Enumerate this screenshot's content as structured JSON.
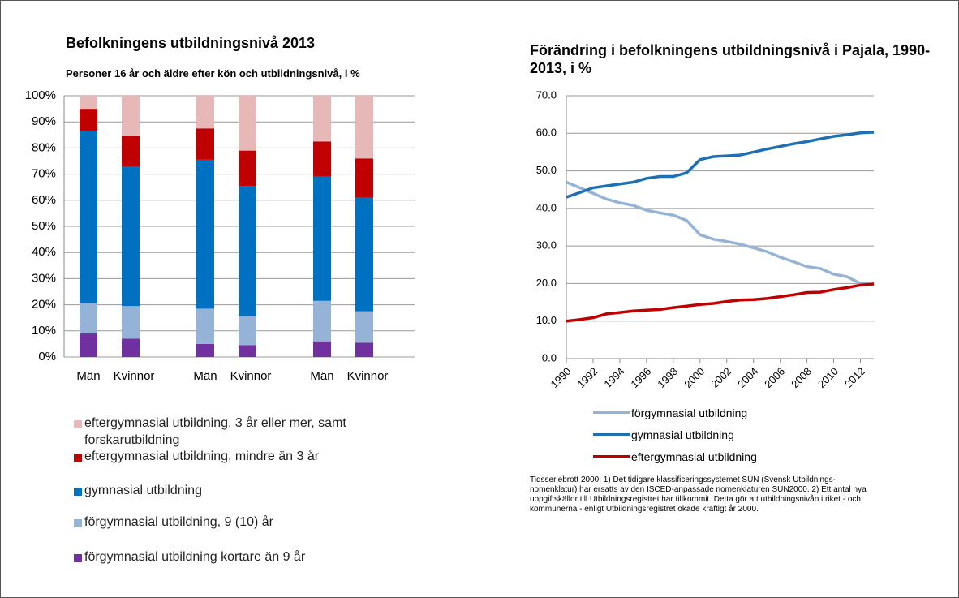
{
  "chart_data": [
    {
      "type": "bar",
      "stacked": true,
      "title": "Befolkningens utbildningsnivå 2013",
      "subtitle": "Personer 16 år och äldre efter kön och utbildningsnivå, i %",
      "categories": [
        "Män",
        "Kvinnor",
        "Män",
        "Kvinnor",
        "Män",
        "Kvinnor"
      ],
      "ylim": [
        0,
        100
      ],
      "yticks": [
        {
          "value": 0,
          "label": "0%"
        },
        {
          "value": 10,
          "label": "10%"
        },
        {
          "value": 20,
          "label": "20%"
        },
        {
          "value": 30,
          "label": "30%"
        },
        {
          "value": 40,
          "label": "40%"
        },
        {
          "value": 50,
          "label": "50%"
        },
        {
          "value": 60,
          "label": "60%"
        },
        {
          "value": 70,
          "label": "70%"
        },
        {
          "value": 80,
          "label": "80%"
        },
        {
          "value": 90,
          "label": "90%"
        },
        {
          "value": 100,
          "label": "100%"
        }
      ],
      "grid": true,
      "series": [
        {
          "name": "förgymnasial utbildning kortare än 9 år",
          "color": "#7030a0",
          "values": [
            9,
            7,
            5,
            4.5,
            6,
            5.5
          ]
        },
        {
          "name": "förgymnasial utbildning, 9 (10) år",
          "color": "#95b3d7",
          "values": [
            11.5,
            12.5,
            13.5,
            11,
            15.5,
            12
          ]
        },
        {
          "name": "gymnasial utbildning",
          "color": "#0070c0",
          "values": [
            66,
            53.5,
            57,
            50,
            47.5,
            43.5
          ]
        },
        {
          "name": "eftergymnasial utbildning, mindre än 3 år",
          "color": "#c00000",
          "values": [
            8.5,
            11.5,
            12,
            13.5,
            13.5,
            15
          ]
        },
        {
          "name": "eftergymnasial utbildning, 3 år eller mer, samt forskarutbildning",
          "color": "#e6b9b8",
          "values": [
            5,
            15.5,
            12.5,
            21,
            17.5,
            24
          ]
        }
      ]
    },
    {
      "type": "line",
      "title": "Förändring i befolkningens utbildningsnivå i Pajala, 1990-2013, i %",
      "x": [
        1990,
        1991,
        1992,
        1993,
        1994,
        1995,
        1996,
        1997,
        1998,
        1999,
        2000,
        2001,
        2002,
        2003,
        2004,
        2005,
        2006,
        2007,
        2008,
        2009,
        2010,
        2011,
        2012,
        2013
      ],
      "xlim": [
        1990,
        2013
      ],
      "xticks": [
        1990,
        1992,
        1994,
        1996,
        1998,
        2000,
        2002,
        2004,
        2006,
        2008,
        2010,
        2012
      ],
      "ylim": [
        0,
        70
      ],
      "yticks": [
        {
          "value": 0,
          "label": "0.0"
        },
        {
          "value": 10,
          "label": "10.0"
        },
        {
          "value": 20,
          "label": "20.0"
        },
        {
          "value": 30,
          "label": "30.0"
        },
        {
          "value": 40,
          "label": "40.0"
        },
        {
          "value": 50,
          "label": "50.0"
        },
        {
          "value": 60,
          "label": "60.0"
        },
        {
          "value": 70,
          "label": "70.0"
        }
      ],
      "grid": true,
      "series": [
        {
          "name": "förgymnasial utbildning",
          "color": "#95b3d7",
          "values": [
            47,
            45.5,
            44,
            42.5,
            41.5,
            40.8,
            39.5,
            38.8,
            38.2,
            36.8,
            33,
            31.8,
            31.2,
            30.5,
            29.5,
            28.5,
            27,
            25.8,
            24.5,
            24,
            22.5,
            21.8,
            20,
            19.8
          ]
        },
        {
          "name": "gymnasial utbildning",
          "color": "#1f6fb5",
          "values": [
            43,
            44.2,
            45.5,
            46,
            46.5,
            47,
            48,
            48.5,
            48.5,
            49.5,
            53,
            53.8,
            54,
            54.2,
            55,
            55.8,
            56.5,
            57.2,
            57.8,
            58.5,
            59.2,
            59.6,
            60.1,
            60.3
          ]
        },
        {
          "name": "eftergymnasial utbildning",
          "color": "#c00000",
          "values": [
            10,
            10.4,
            10.9,
            11.9,
            12.3,
            12.7,
            12.9,
            13.1,
            13.6,
            14,
            14.4,
            14.7,
            15.2,
            15.6,
            15.7,
            16,
            16.5,
            17,
            17.6,
            17.7,
            18.4,
            18.9,
            19.6,
            19.9
          ]
        }
      ],
      "annotation": "Tidsseriebrott 2000;  1) Det tidigare klassificeringssystemet SUN (Svensk Utbildnings-nomenklatur) har ersatts av den ISCED-anpassade nomenklaturen SUN2000. 2) Ett antal nya uppgiftskällor till Utbildningsregistret har tillkommit. Detta gör att utbildningsnivån i riket - och kommunerna - enligt Utbildningsregistret ökade kraftigt år 2000."
    }
  ]
}
